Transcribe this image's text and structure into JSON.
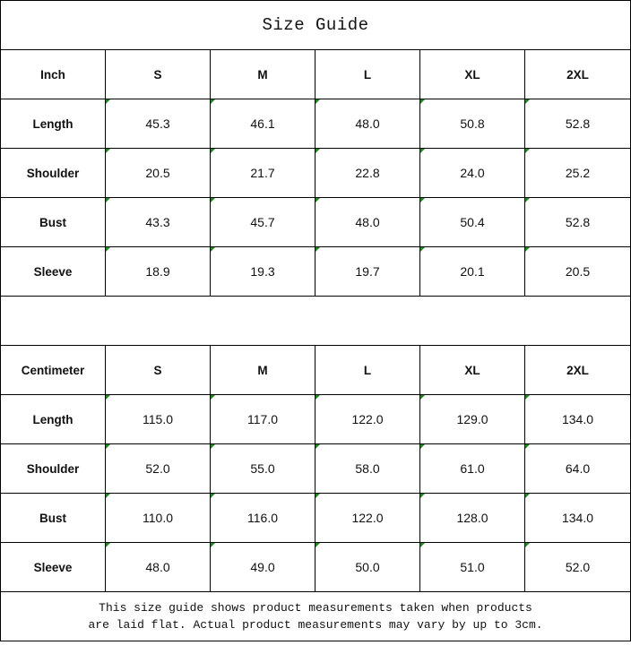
{
  "title": "Size Guide",
  "tables": [
    {
      "unit": "Inch",
      "sizes": [
        "S",
        "M",
        "L",
        "XL",
        "2XL"
      ],
      "rows": [
        {
          "label": "Length",
          "values": [
            "45.3",
            "46.1",
            "48.0",
            "50.8",
            "52.8"
          ]
        },
        {
          "label": "Shoulder",
          "values": [
            "20.5",
            "21.7",
            "22.8",
            "24.0",
            "25.2"
          ]
        },
        {
          "label": "Bust",
          "values": [
            "43.3",
            "45.7",
            "48.0",
            "50.4",
            "52.8"
          ]
        },
        {
          "label": "Sleeve",
          "values": [
            "18.9",
            "19.3",
            "19.7",
            "20.1",
            "20.5"
          ]
        }
      ]
    },
    {
      "unit": "Centimeter",
      "sizes": [
        "S",
        "M",
        "L",
        "XL",
        "2XL"
      ],
      "rows": [
        {
          "label": "Length",
          "values": [
            "115.0",
            "117.0",
            "122.0",
            "129.0",
            "134.0"
          ]
        },
        {
          "label": "Shoulder",
          "values": [
            "52.0",
            "55.0",
            "58.0",
            "61.0",
            "64.0"
          ]
        },
        {
          "label": "Bust",
          "values": [
            "110.0",
            "116.0",
            "122.0",
            "128.0",
            "134.0"
          ]
        },
        {
          "label": "Sleeve",
          "values": [
            "48.0",
            "49.0",
            "50.0",
            "51.0",
            "52.0"
          ]
        }
      ]
    }
  ],
  "note_line1": "This size guide shows product measurements taken when products",
  "note_line2": "are laid flat. Actual product measurements may vary by up to 3cm.",
  "colors": {
    "cell_marker": "#1a8a1a",
    "border": "#000000"
  }
}
